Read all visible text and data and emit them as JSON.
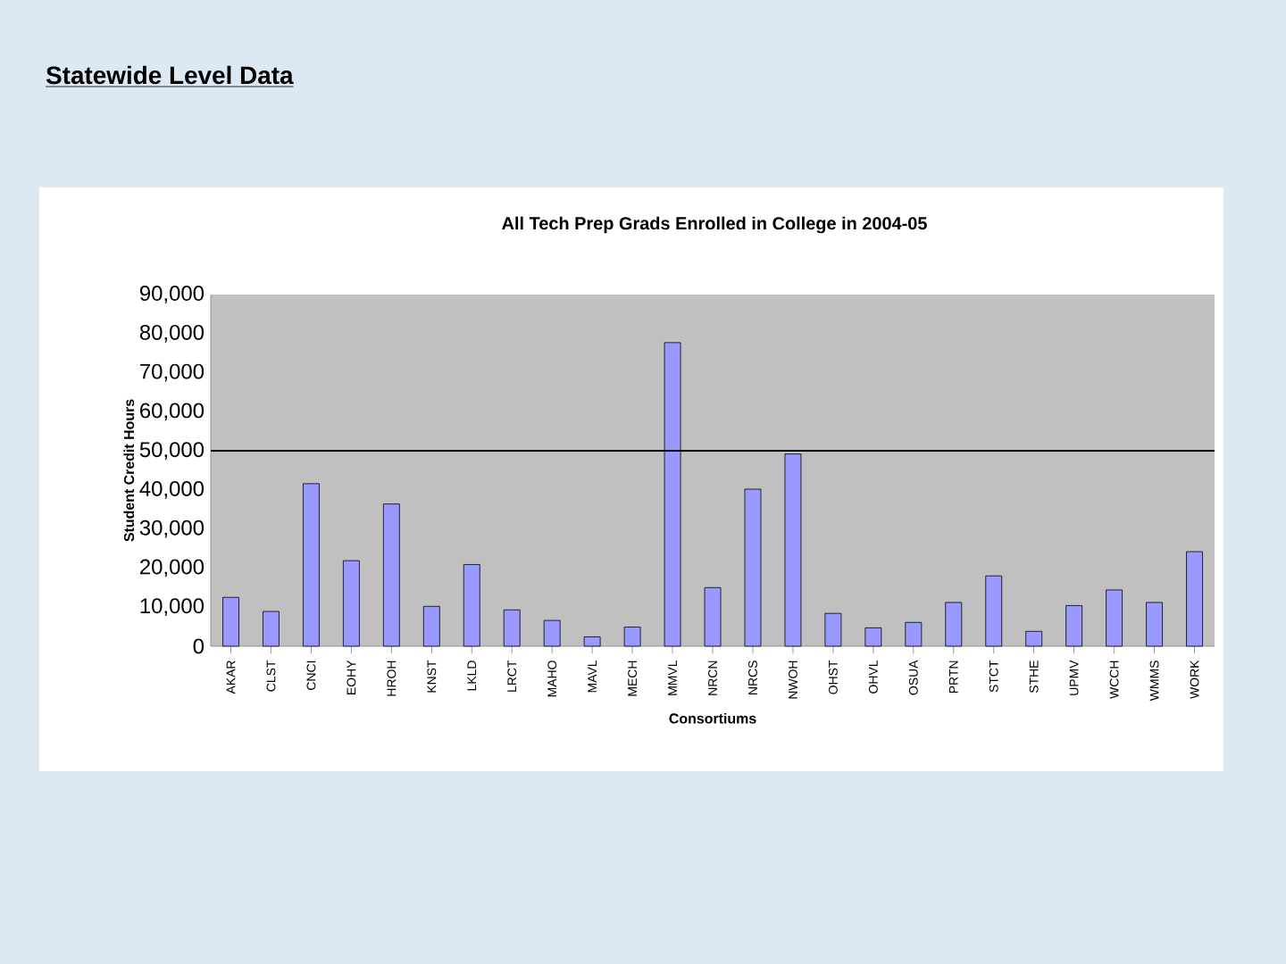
{
  "chart_data": {
    "type": "bar",
    "title": "Statewide Level Data",
    "subtitle": "All Tech Prep Grads Enrolled in College in 2004-05",
    "xlabel": "Consortiums",
    "ylabel": "Student Credit Hours",
    "categories": [
      "AKAR",
      "CLST",
      "CNCI",
      "EOHY",
      "HROH",
      "KNST",
      "LKLD",
      "LRCT",
      "MAHO",
      "MAVL",
      "MECH",
      "MMVL",
      "NRCN",
      "NRCS",
      "NWOH",
      "OHST",
      "OHVL",
      "OSUA",
      "PRTN",
      "STCT",
      "STHE",
      "UPMV",
      "WCCH",
      "WMMS",
      "WORK"
    ],
    "values": [
      12500,
      8900,
      41600,
      21900,
      36400,
      10200,
      20900,
      9300,
      6600,
      2400,
      4900,
      77700,
      15000,
      40200,
      49200,
      8400,
      4700,
      6100,
      11200,
      18000,
      3800,
      10400,
      14400,
      11200,
      24200
    ],
    "color": "#9999ff",
    "ylim": [
      0,
      90000
    ],
    "yticks": [
      {
        "value": 0,
        "label": "0"
      },
      {
        "value": 10000,
        "label": "10,000"
      },
      {
        "value": 20000,
        "label": "20,000"
      },
      {
        "value": 30000,
        "label": "30,000"
      },
      {
        "value": 40000,
        "label": "40,000"
      },
      {
        "value": 50000,
        "label": "50,000"
      },
      {
        "value": 60000,
        "label": "60,000"
      },
      {
        "value": 70000,
        "label": "70,000"
      },
      {
        "value": 80000,
        "label": "80,000"
      },
      {
        "value": 90000,
        "label": "90,000"
      }
    ],
    "ref_lines": [
      {
        "axis": "y",
        "value": 50000,
        "color": "#000000"
      }
    ],
    "grid": false
  }
}
